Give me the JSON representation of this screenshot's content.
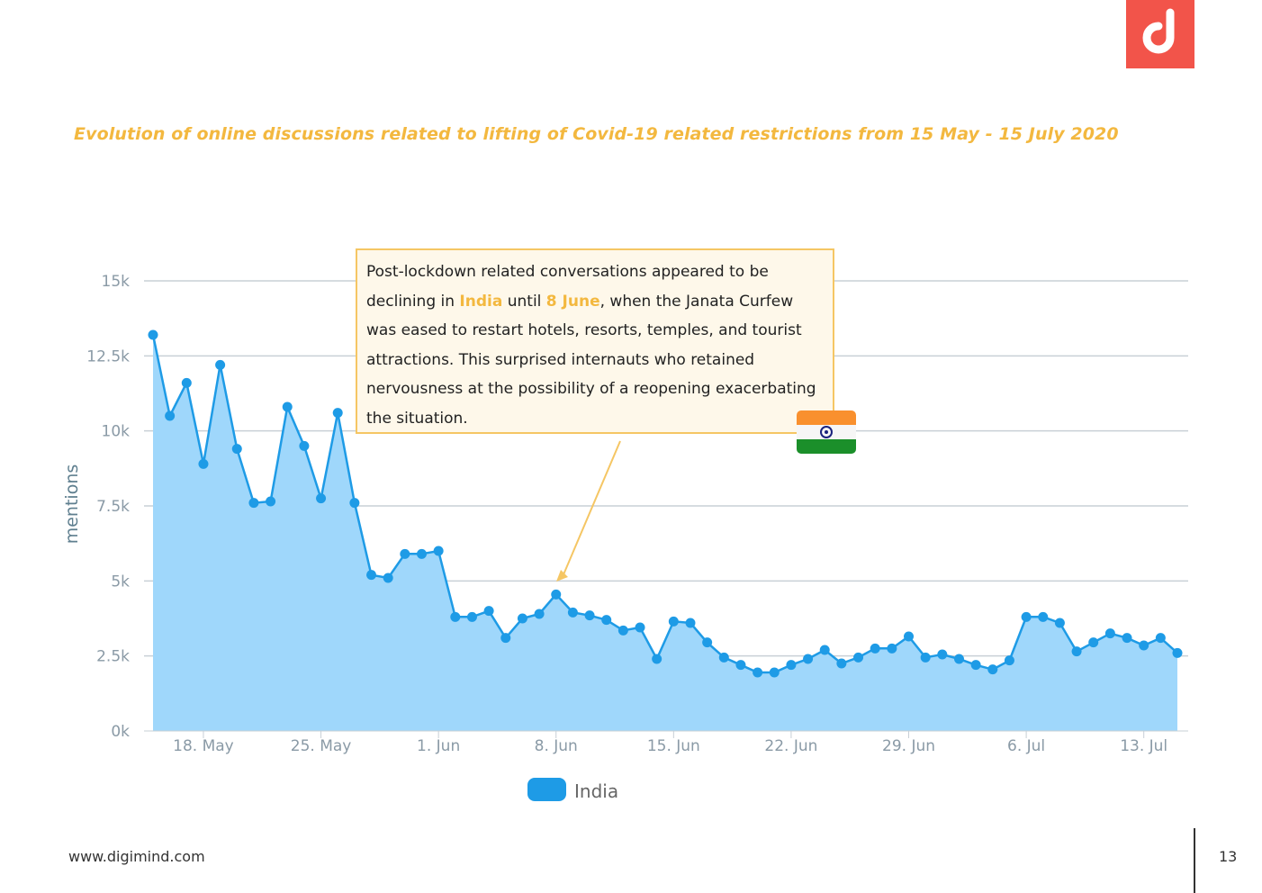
{
  "brand": {
    "logo_icon": "digimind-logo-icon",
    "logo_color": "#f2544a"
  },
  "header": {
    "title": "Evolution of online discussions related to lifting of Covid-19 related restrictions from 15 May - 15 July 2020"
  },
  "callout": {
    "text_1": "Post-lockdown related conversations appeared to be declining in ",
    "highlight_country": "India",
    "text_2": " until ",
    "highlight_date": "8 June",
    "text_3": ", when the Janata Curfew was eased to restart hotels, resorts, temples, and tourist attractions. This surprised internauts who retained nervousness at the possibility of a reopening exacerbating the situation.",
    "flag_icon": "india-flag-icon",
    "accent_color": "#f3b83f"
  },
  "chart_data": {
    "type": "area",
    "title": "",
    "xlabel": "",
    "ylabel": "mentions",
    "ylim": [
      0,
      15000
    ],
    "y_ticks": [
      0,
      2500,
      5000,
      7500,
      10000,
      12500,
      15000
    ],
    "y_tick_labels": [
      "0k",
      "2.5k",
      "5k",
      "7.5k",
      "10k",
      "12.5k",
      "15k"
    ],
    "x_tick_labels": [
      "18. May",
      "25. May",
      "1. Jun",
      "8. Jun",
      "15. Jun",
      "22. Jun",
      "29. Jun",
      "6. Jul",
      "13. Jul"
    ],
    "x_tick_day_index": [
      3,
      10,
      17,
      24,
      31,
      38,
      45,
      52,
      59
    ],
    "x_start": "15 May 2020",
    "x_end": "15 Jul 2020",
    "legend": {
      "position": "bottom-center"
    },
    "series": [
      {
        "name": "India",
        "color": "#1e9be6",
        "fill": "#9fd7fb",
        "values": [
          13200,
          10500,
          11600,
          8900,
          12200,
          9400,
          7600,
          7650,
          10800,
          9500,
          7750,
          10600,
          7600,
          5200,
          5100,
          5900,
          5900,
          6000,
          3800,
          3800,
          4000,
          3100,
          3750,
          3900,
          4550,
          3950,
          3850,
          3700,
          3350,
          3450,
          2400,
          3650,
          3600,
          2950,
          2450,
          2200,
          1950,
          1950,
          2200,
          2400,
          2700,
          2250,
          2450,
          2750,
          2750,
          3150,
          2450,
          2550,
          2400,
          2200,
          2050,
          2350,
          3800,
          3800,
          3600,
          2650,
          2950,
          3250,
          3100,
          2850,
          3100,
          2600
        ]
      }
    ]
  },
  "footer": {
    "url": "www.digimind.com",
    "page_number": "13"
  }
}
